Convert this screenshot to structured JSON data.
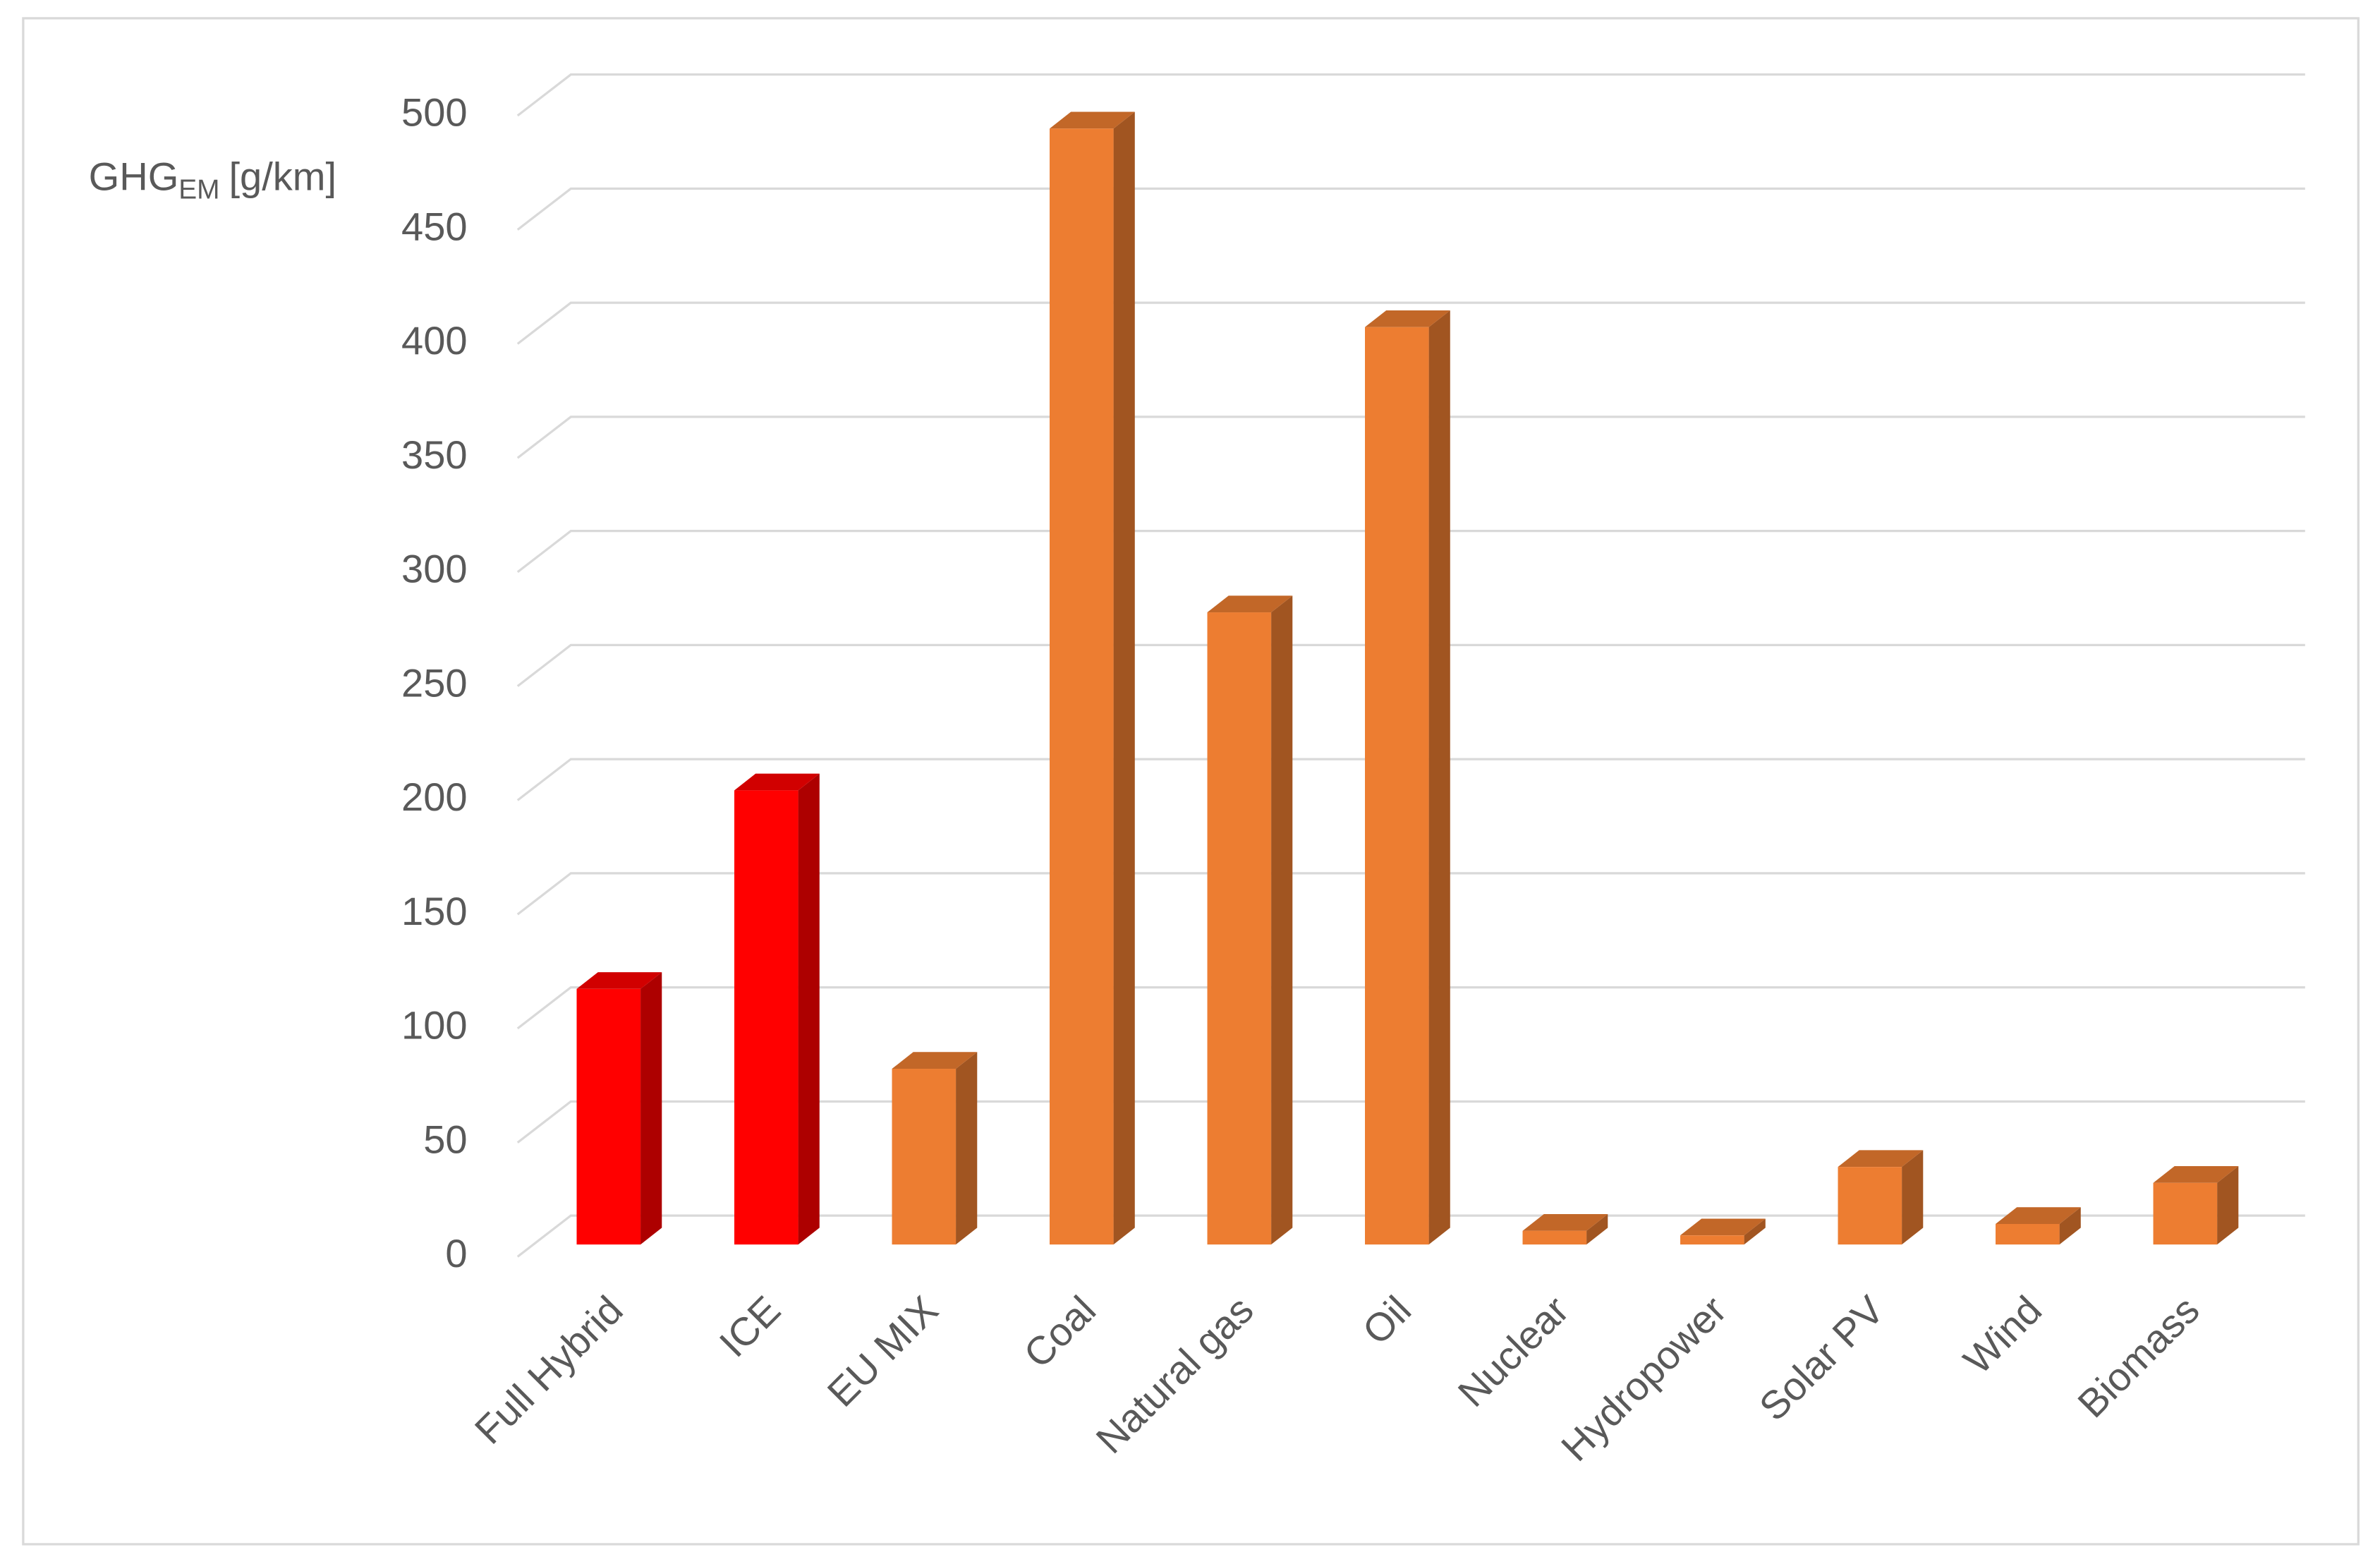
{
  "chart_data": {
    "type": "bar3d",
    "y_label": "GHG",
    "y_label_subscript": "EM",
    "y_label_unit": "[g/km]",
    "categories": [
      "Full Hybrid",
      "ICE",
      "EU MIX",
      "Coal",
      "Natural gas",
      "Oil",
      "Nuclear",
      "Hydropower",
      "Solar PV",
      "Wind",
      "Biomass"
    ],
    "values": [
      112,
      199,
      77,
      489,
      277,
      402,
      6,
      4,
      34,
      9,
      27
    ],
    "colors": [
      "#ff0000",
      "#ff0000",
      "#ed7d31",
      "#ed7d31",
      "#ed7d31",
      "#ed7d31",
      "#ed7d31",
      "#ed7d31",
      "#ed7d31",
      "#ed7d31",
      "#ed7d31"
    ],
    "ylim": [
      0,
      500
    ],
    "yticks": [
      0,
      50,
      100,
      150,
      200,
      250,
      300,
      350,
      400,
      450,
      500
    ],
    "grid": true
  }
}
